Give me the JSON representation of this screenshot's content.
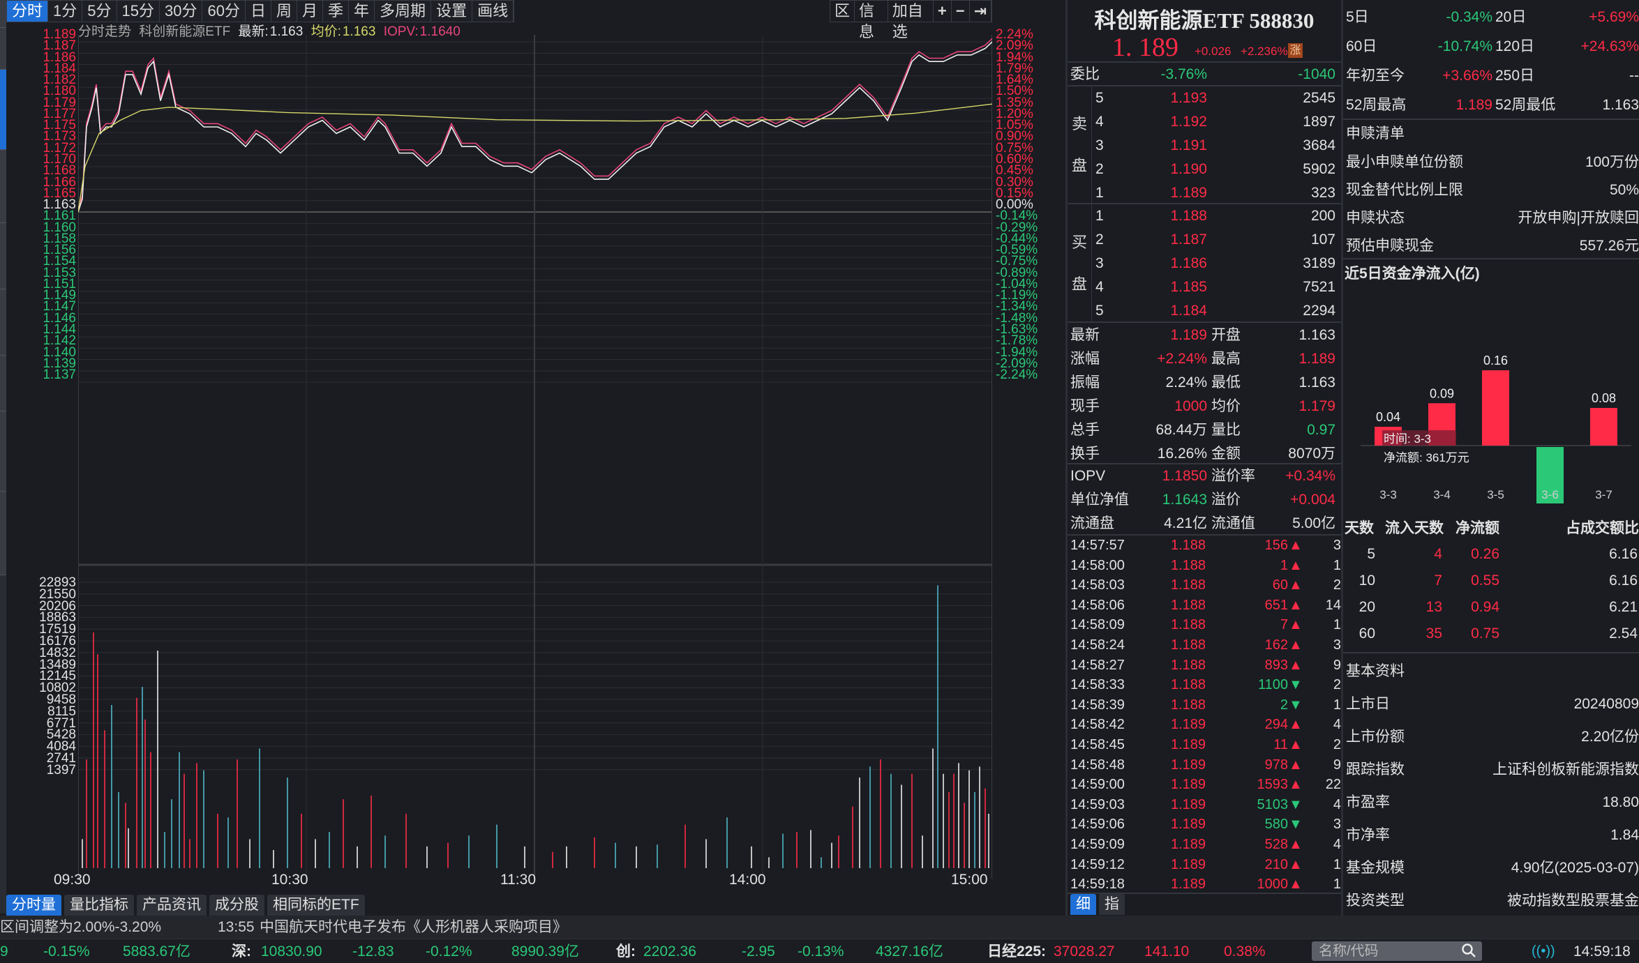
{
  "colors": {
    "up": "#ff2b47",
    "down": "#2bc878",
    "neutral": "#e2e2e2",
    "avg": "#d8d86a",
    "iopv": "#e8457a",
    "accent": "#1f6fd6",
    "bg": "#1a1c21"
  },
  "period_tabs": [
    "分时",
    "1分",
    "5分",
    "15分",
    "30分",
    "60分",
    "日",
    "周",
    "月",
    "季",
    "年",
    "多周期",
    "设置",
    "画线"
  ],
  "toolbar": {
    "range": "区",
    "info": "信息",
    "add_watch": "加自选",
    "zoom_in": "+",
    "zoom_out": "−",
    "end": "⇥"
  },
  "chart_header": {
    "label": "分时走势",
    "name": "科创新能源ETF",
    "latest_label": "最新:",
    "latest": "1.163",
    "avg_label": "均价:",
    "avg": "1.163",
    "iopv_label": "IOPV:",
    "iopv": "1.1640"
  },
  "price_axis": [
    {
      "v": "1.189",
      "c": "up"
    },
    {
      "v": "1.187",
      "c": "up"
    },
    {
      "v": "1.186",
      "c": "up"
    },
    {
      "v": "1.184",
      "c": "up"
    },
    {
      "v": "1.182",
      "c": "up"
    },
    {
      "v": "1.180",
      "c": "up"
    },
    {
      "v": "1.179",
      "c": "up"
    },
    {
      "v": "1.177",
      "c": "up"
    },
    {
      "v": "1.175",
      "c": "up"
    },
    {
      "v": "1.173",
      "c": "up"
    },
    {
      "v": "1.172",
      "c": "up"
    },
    {
      "v": "1.170",
      "c": "up"
    },
    {
      "v": "1.168",
      "c": "up"
    },
    {
      "v": "1.166",
      "c": "up"
    },
    {
      "v": "1.165",
      "c": "up"
    },
    {
      "v": "1.163",
      "c": "neutral"
    },
    {
      "v": "1.161",
      "c": "down"
    },
    {
      "v": "1.160",
      "c": "down"
    },
    {
      "v": "1.158",
      "c": "down"
    },
    {
      "v": "1.156",
      "c": "down"
    },
    {
      "v": "1.154",
      "c": "down"
    },
    {
      "v": "1.153",
      "c": "down"
    },
    {
      "v": "1.151",
      "c": "down"
    },
    {
      "v": "1.149",
      "c": "down"
    },
    {
      "v": "1.147",
      "c": "down"
    },
    {
      "v": "1.146",
      "c": "down"
    },
    {
      "v": "1.144",
      "c": "down"
    },
    {
      "v": "1.142",
      "c": "down"
    },
    {
      "v": "1.140",
      "c": "down"
    },
    {
      "v": "1.139",
      "c": "down"
    },
    {
      "v": "1.137",
      "c": "down"
    }
  ],
  "pct_axis": [
    "2.24%",
    "2.09%",
    "1.94%",
    "1.79%",
    "1.64%",
    "1.50%",
    "1.35%",
    "1.20%",
    "1.05%",
    "0.90%",
    "0.75%",
    "0.60%",
    "0.45%",
    "0.30%",
    "0.15%",
    "0.00%",
    "-0.14%",
    "-0.29%",
    "-0.44%",
    "-0.59%",
    "-0.75%",
    "-0.89%",
    "-1.04%",
    "-1.19%",
    "-1.34%",
    "-1.48%",
    "-1.63%",
    "-1.78%",
    "-1.94%",
    "-2.09%",
    "-2.24%"
  ],
  "volume_axis": [
    "22893",
    "21550",
    "20206",
    "18863",
    "17519",
    "16176",
    "14832",
    "13489",
    "12145",
    "10802",
    "9458",
    "8115",
    "6771",
    "5428",
    "4084",
    "2741",
    "1397"
  ],
  "time_axis": [
    "09:30",
    "10:30",
    "11:30",
    "14:00",
    "15:00"
  ],
  "bottom_tabs": [
    "分时量",
    "量比指标",
    "产品资讯",
    "成分股",
    "相同标的ETF"
  ],
  "quote": {
    "title": "科创新能源ETF 588830",
    "price": "1. 189",
    "change": "+0.026",
    "change_pct": "+2.236%",
    "badge": "涨",
    "weibi_label": "委比",
    "weibi_pct": "-3.76%",
    "weibi_val": "-1040",
    "sell_label": [
      "卖",
      "盘"
    ],
    "buy_label": [
      "买",
      "盘"
    ],
    "sell": [
      {
        "lvl": "5",
        "p": "1.193",
        "v": "2545"
      },
      {
        "lvl": "4",
        "p": "1.192",
        "v": "1897"
      },
      {
        "lvl": "3",
        "p": "1.191",
        "v": "3684"
      },
      {
        "lvl": "2",
        "p": "1.190",
        "v": "5902"
      },
      {
        "lvl": "1",
        "p": "1.189",
        "v": "323"
      }
    ],
    "buy": [
      {
        "lvl": "1",
        "p": "1.188",
        "v": "200"
      },
      {
        "lvl": "2",
        "p": "1.187",
        "v": "107"
      },
      {
        "lvl": "3",
        "p": "1.186",
        "v": "3189"
      },
      {
        "lvl": "4",
        "p": "1.185",
        "v": "7521"
      },
      {
        "lvl": "5",
        "p": "1.184",
        "v": "2294"
      }
    ],
    "stats": [
      {
        "l1": "最新",
        "v1": "1.189",
        "c1": "up",
        "l2": "开盘",
        "v2": "1.163",
        "c2": "neutral"
      },
      {
        "l1": "涨幅",
        "v1": "+2.24%",
        "c1": "up",
        "l2": "最高",
        "v2": "1.189",
        "c2": "up"
      },
      {
        "l1": "振幅",
        "v1": "2.24%",
        "c1": "neutral",
        "l2": "最低",
        "v2": "1.163",
        "c2": "neutral"
      },
      {
        "l1": "现手",
        "v1": "1000",
        "c1": "up",
        "l2": "均价",
        "v2": "1.179",
        "c2": "up"
      },
      {
        "l1": "总手",
        "v1": "68.44万",
        "c1": "neutral",
        "l2": "量比",
        "v2": "0.97",
        "c2": "down"
      },
      {
        "l1": "换手",
        "v1": "16.26%",
        "c1": "neutral",
        "l2": "金额",
        "v2": "8070万",
        "c2": "neutral"
      }
    ],
    "stats2": [
      {
        "l1": "IOPV",
        "v1": "1.1850",
        "c1": "up",
        "l2": "溢价率",
        "v2": "+0.34%",
        "c2": "up"
      },
      {
        "l1": "单位净值",
        "v1": "1.1643",
        "c1": "down",
        "l2": "溢价",
        "v2": "+0.004",
        "c2": "up"
      },
      {
        "l1": "流通盘",
        "v1": "4.21亿",
        "c1": "neutral",
        "l2": "流通值",
        "v2": "5.00亿",
        "c2": "neutral"
      }
    ],
    "ticks": [
      {
        "t": "14:57:57",
        "p": "1.188",
        "v": "156",
        "d": "up",
        "n": "3"
      },
      {
        "t": "14:58:00",
        "p": "1.188",
        "v": "1",
        "d": "up",
        "n": "1"
      },
      {
        "t": "14:58:03",
        "p": "1.188",
        "v": "60",
        "d": "up",
        "n": "2"
      },
      {
        "t": "14:58:06",
        "p": "1.188",
        "v": "651",
        "d": "up",
        "n": "14"
      },
      {
        "t": "14:58:09",
        "p": "1.188",
        "v": "7",
        "d": "up",
        "n": "1"
      },
      {
        "t": "14:58:24",
        "p": "1.188",
        "v": "162",
        "d": "up",
        "n": "3"
      },
      {
        "t": "14:58:27",
        "p": "1.188",
        "v": "893",
        "d": "up",
        "n": "9"
      },
      {
        "t": "14:58:33",
        "p": "1.188",
        "v": "1100",
        "d": "down",
        "n": "2"
      },
      {
        "t": "14:58:39",
        "p": "1.188",
        "v": "2",
        "d": "down",
        "n": "1"
      },
      {
        "t": "14:58:42",
        "p": "1.189",
        "v": "294",
        "d": "up",
        "n": "4"
      },
      {
        "t": "14:58:45",
        "p": "1.189",
        "v": "11",
        "d": "up",
        "n": "2"
      },
      {
        "t": "14:58:48",
        "p": "1.189",
        "v": "978",
        "d": "up",
        "n": "9"
      },
      {
        "t": "14:59:00",
        "p": "1.189",
        "v": "1593",
        "d": "up",
        "n": "22"
      },
      {
        "t": "14:59:03",
        "p": "1.189",
        "v": "5103",
        "d": "down",
        "n": "4"
      },
      {
        "t": "14:59:06",
        "p": "1.189",
        "v": "580",
        "d": "down",
        "n": "3"
      },
      {
        "t": "14:59:09",
        "p": "1.189",
        "v": "528",
        "d": "up",
        "n": "4"
      },
      {
        "t": "14:59:12",
        "p": "1.189",
        "v": "210",
        "d": "up",
        "n": "1"
      },
      {
        "t": "14:59:18",
        "p": "1.189",
        "v": "1000",
        "d": "up",
        "n": "1"
      }
    ],
    "tabs": [
      "细",
      "指"
    ]
  },
  "right": {
    "perf": [
      {
        "l1": "5日",
        "v1": "-0.34%",
        "c1": "down",
        "l2": "20日",
        "v2": "+5.69%",
        "c2": "up"
      },
      {
        "l1": "60日",
        "v1": "-10.74%",
        "c1": "down",
        "l2": "120日",
        "v2": "+24.63%",
        "c2": "up"
      },
      {
        "l1": "年初至今",
        "v1": "+3.66%",
        "c1": "up",
        "l2": "250日",
        "v2": "--",
        "c2": "neutral"
      },
      {
        "l1": "52周最高",
        "v1": "1.189",
        "c1": "up",
        "l2": "52周最低",
        "v2": "1.163",
        "c2": "neutral"
      }
    ],
    "redeem_title": "申赎清单",
    "redeem": [
      {
        "l": "最小申赎单位份额",
        "v": "100万份"
      },
      {
        "l": "现金替代比例上限",
        "v": "50%"
      },
      {
        "l": "申赎状态",
        "v": "开放申购|开放赎回"
      },
      {
        "l": "预估申赎现金",
        "v": "557.26元"
      }
    ],
    "flow_title": "近5日资金净流入(亿)",
    "flow_tooltip": {
      "time": "时间: 3-3",
      "amount": "净流额: 361万元"
    },
    "flow_table": {
      "headers": [
        "天数",
        "流入天数",
        "净流额",
        "占成交额比"
      ],
      "rows": [
        [
          "5",
          "4",
          "0.26",
          "6.16"
        ],
        [
          "10",
          "7",
          "0.55",
          "6.16"
        ],
        [
          "20",
          "13",
          "0.94",
          "6.21"
        ],
        [
          "60",
          "35",
          "0.75",
          "2.54"
        ]
      ]
    },
    "basic_title": "基本资料",
    "basic": [
      {
        "l": "上市日",
        "v": "20240809"
      },
      {
        "l": "上市份额",
        "v": "2.20亿份"
      },
      {
        "l": "跟踪指数",
        "v": "上证科创板新能源指数"
      },
      {
        "l": "市盈率",
        "v": "18.80"
      },
      {
        "l": "市净率",
        "v": "1.84"
      },
      {
        "l": "基金规模",
        "v": "4.90亿(2025-03-07)"
      },
      {
        "l": "投资类型",
        "v": "被动指数型股票基金"
      }
    ]
  },
  "chart_data": {
    "type": "bar",
    "title": "近5日资金净流入(亿)",
    "categories": [
      "3-3",
      "3-4",
      "3-5",
      "3-6",
      "3-7"
    ],
    "values": [
      0.04,
      0.09,
      0.16,
      -0.12,
      0.08
    ],
    "labels": [
      "0.04",
      "0.09",
      "0.16",
      "-0.12",
      "0.08"
    ],
    "xlabel": "",
    "ylabel": "亿",
    "ylim": [
      -0.14,
      0.2
    ]
  },
  "news": {
    "left": "区间调整为2.00%-3.20%",
    "time": "13:55",
    "headline": "中国航天时代电子发布《人形机器人采购项目》"
  },
  "ticker": {
    "sh_tail": "9",
    "sh_pct": "-0.15%",
    "sh_amt": "5883.67亿",
    "sz_label": "深:",
    "sz_val": "10830.90",
    "sz_chg": "-12.83",
    "sz_pct": "-0.12%",
    "sz_amt": "8990.39亿",
    "cy_label": "创:",
    "cy_val": "2202.36",
    "cy_chg": "-2.95",
    "cy_pct": "-0.13%",
    "cy_amt": "4327.16亿",
    "nk_label": "日经225:",
    "nk_val": "37028.27",
    "nk_chg": "141.10",
    "nk_pct": "0.38%",
    "search_placeholder": "名称/代码",
    "clock": "14:59:18"
  }
}
